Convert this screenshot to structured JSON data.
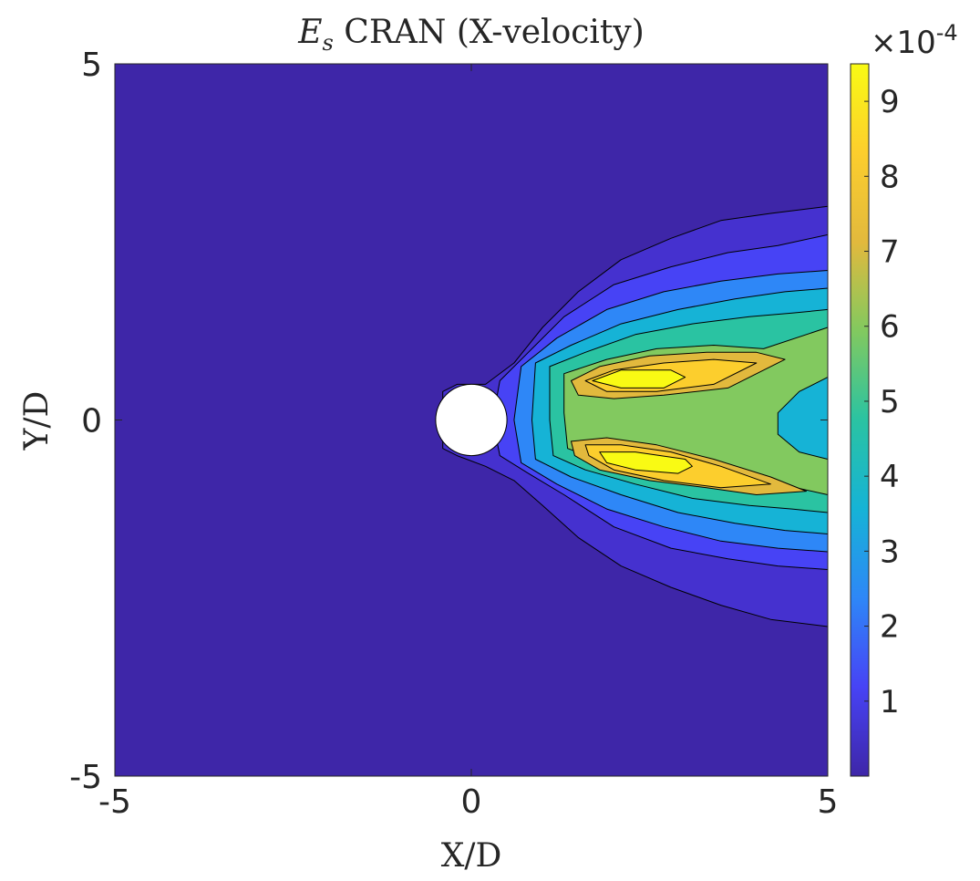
{
  "chart_data": {
    "type": "contour",
    "title": {
      "symbol": "E",
      "subscript": "s",
      "rest": " CRAN (X-velocity)"
    },
    "xlabel": "X/D",
    "ylabel": "Y/D",
    "xlim": [
      -5,
      5
    ],
    "ylim": [
      -5,
      5
    ],
    "x_ticks": [
      {
        "value": -5,
        "label": "-5"
      },
      {
        "value": 0,
        "label": "0"
      },
      {
        "value": 5,
        "label": "5"
      }
    ],
    "y_ticks": [
      {
        "value": -5,
        "label": "-5"
      },
      {
        "value": 0,
        "label": "0"
      },
      {
        "value": 5,
        "label": "5"
      }
    ],
    "colorbar": {
      "min": 0.0,
      "max": 9.5,
      "multiplier_label": "×10",
      "exponent": "-4",
      "ticks": [
        {
          "value": 1,
          "label": "1"
        },
        {
          "value": 2,
          "label": "2"
        },
        {
          "value": 3,
          "label": "3"
        },
        {
          "value": 4,
          "label": "4"
        },
        {
          "value": 5,
          "label": "5"
        },
        {
          "value": 6,
          "label": "6"
        },
        {
          "value": 7,
          "label": "7"
        },
        {
          "value": 8,
          "label": "8"
        },
        {
          "value": 9,
          "label": "9"
        }
      ],
      "colormap": [
        "#3e26a8",
        "#4743f5",
        "#2e87f7",
        "#16b3d6",
        "#2ac3a2",
        "#82c95f",
        "#e2b93d",
        "#fcce2d",
        "#f9fa14"
      ]
    },
    "body": {
      "shape": "circle",
      "center": [
        0,
        0
      ],
      "diameter": 1,
      "color": "#ffffff"
    },
    "background_level_color": "#3e26a8",
    "levels": [
      {
        "value": 0.8,
        "color": "#4531cf",
        "points": [
          [
            -0.4,
            0.4
          ],
          [
            -0.2,
            0.5
          ],
          [
            0.2,
            0.5
          ],
          [
            0.6,
            0.8
          ],
          [
            1.0,
            1.3
          ],
          [
            1.5,
            1.8
          ],
          [
            2.1,
            2.25
          ],
          [
            2.8,
            2.55
          ],
          [
            3.5,
            2.8
          ],
          [
            4.2,
            2.9
          ],
          [
            5,
            3.0
          ],
          [
            5,
            -2.9
          ],
          [
            4.2,
            -2.8
          ],
          [
            3.5,
            -2.6
          ],
          [
            2.8,
            -2.35
          ],
          [
            2.1,
            -2.05
          ],
          [
            1.5,
            -1.65
          ],
          [
            1.0,
            -1.2
          ],
          [
            0.6,
            -0.85
          ],
          [
            0.2,
            -0.65
          ],
          [
            -0.2,
            -0.5
          ],
          [
            -0.4,
            -0.4
          ]
        ]
      },
      {
        "value": 1.5,
        "color": "#4743f5",
        "points": [
          [
            0.4,
            0.55
          ],
          [
            0.8,
            0.95
          ],
          [
            1.3,
            1.45
          ],
          [
            2.0,
            1.9
          ],
          [
            2.8,
            2.15
          ],
          [
            3.6,
            2.35
          ],
          [
            4.3,
            2.45
          ],
          [
            5,
            2.6
          ],
          [
            5,
            -2.1
          ],
          [
            4.3,
            -2.05
          ],
          [
            3.6,
            -1.95
          ],
          [
            2.8,
            -1.8
          ],
          [
            2.0,
            -1.5
          ],
          [
            1.3,
            -1.05
          ],
          [
            0.8,
            -0.75
          ],
          [
            0.4,
            -0.5
          ],
          [
            0.3,
            0
          ]
        ]
      },
      {
        "value": 2.5,
        "color": "#2e87f7",
        "points": [
          [
            0.7,
            0.75
          ],
          [
            1.2,
            1.15
          ],
          [
            1.9,
            1.55
          ],
          [
            2.7,
            1.8
          ],
          [
            3.5,
            1.95
          ],
          [
            4.3,
            2.05
          ],
          [
            5,
            2.1
          ],
          [
            5,
            -1.85
          ],
          [
            4.3,
            -1.8
          ],
          [
            3.5,
            -1.7
          ],
          [
            2.7,
            -1.5
          ],
          [
            1.9,
            -1.25
          ],
          [
            1.2,
            -0.9
          ],
          [
            0.7,
            -0.6
          ],
          [
            0.6,
            0
          ]
        ]
      },
      {
        "value": 3.5,
        "color": "#16b3d6",
        "points": [
          [
            0.9,
            0.8
          ],
          [
            1.4,
            1.05
          ],
          [
            2.1,
            1.35
          ],
          [
            2.9,
            1.55
          ],
          [
            3.7,
            1.7
          ],
          [
            4.4,
            1.8
          ],
          [
            5,
            1.85
          ],
          [
            5,
            -1.6
          ],
          [
            4.4,
            -1.55
          ],
          [
            3.7,
            -1.45
          ],
          [
            2.9,
            -1.3
          ],
          [
            2.1,
            -1.05
          ],
          [
            1.4,
            -0.8
          ],
          [
            0.9,
            -0.55
          ],
          [
            0.85,
            0
          ]
        ]
      },
      {
        "value": 4.5,
        "color": "#2ac3a2",
        "points": [
          [
            1.1,
            0.75
          ],
          [
            1.6,
            0.95
          ],
          [
            2.3,
            1.2
          ],
          [
            3.1,
            1.35
          ],
          [
            3.9,
            1.45
          ],
          [
            4.5,
            1.5
          ],
          [
            5,
            1.55
          ],
          [
            5,
            -1.3
          ],
          [
            4.5,
            -1.25
          ],
          [
            3.9,
            -1.2
          ],
          [
            3.1,
            -1.1
          ],
          [
            2.3,
            -0.9
          ],
          [
            1.6,
            -0.7
          ],
          [
            1.15,
            -0.5
          ],
          [
            1.1,
            0
          ]
        ]
      },
      {
        "value": 5.5,
        "color": "#82c95f",
        "points": [
          [
            1.3,
            0.65
          ],
          [
            1.9,
            0.85
          ],
          [
            2.6,
            1.0
          ],
          [
            3.4,
            1.05
          ],
          [
            4.1,
            1.0
          ],
          [
            5,
            1.3
          ],
          [
            5,
            -1.05
          ],
          [
            4.1,
            -0.85
          ],
          [
            3.4,
            -0.85
          ],
          [
            2.6,
            -0.75
          ],
          [
            1.9,
            -0.6
          ],
          [
            1.35,
            -0.4
          ],
          [
            1.3,
            0.1
          ]
        ]
      },
      {
        "value": 6.5,
        "color": "#e2b93d",
        "points": [
          [
            1.4,
            0.55
          ],
          [
            1.8,
            0.75
          ],
          [
            2.5,
            0.9
          ],
          [
            3.3,
            0.95
          ],
          [
            4.0,
            0.95
          ],
          [
            4.4,
            0.85
          ],
          [
            3.6,
            0.45
          ],
          [
            2.7,
            0.35
          ],
          [
            2.0,
            0.3
          ],
          [
            1.5,
            0.35
          ]
        ]
      },
      {
        "value": 7.5,
        "color": "#fcce2d",
        "points": [
          [
            1.6,
            0.55
          ],
          [
            2.0,
            0.7
          ],
          [
            2.7,
            0.8
          ],
          [
            3.4,
            0.85
          ],
          [
            4.0,
            0.8
          ],
          [
            3.4,
            0.5
          ],
          [
            2.6,
            0.4
          ],
          [
            1.9,
            0.4
          ]
        ]
      },
      {
        "value": 9.0,
        "color": "#f9fa14",
        "points": [
          [
            1.7,
            0.55
          ],
          [
            2.1,
            0.7
          ],
          [
            2.8,
            0.7
          ],
          [
            3.0,
            0.6
          ],
          [
            2.7,
            0.45
          ],
          [
            2.1,
            0.45
          ]
        ]
      },
      {
        "value": 6.5,
        "color": "#e2b93d",
        "points": [
          [
            1.4,
            -0.3
          ],
          [
            1.9,
            -0.25
          ],
          [
            2.6,
            -0.35
          ],
          [
            3.4,
            -0.55
          ],
          [
            4.2,
            -0.8
          ],
          [
            4.7,
            -1.0
          ],
          [
            4.0,
            -1.05
          ],
          [
            3.3,
            -0.95
          ],
          [
            2.5,
            -0.85
          ],
          [
            1.8,
            -0.7
          ],
          [
            1.45,
            -0.5
          ]
        ]
      },
      {
        "value": 7.5,
        "color": "#fcce2d",
        "points": [
          [
            1.6,
            -0.35
          ],
          [
            2.1,
            -0.35
          ],
          [
            2.8,
            -0.45
          ],
          [
            3.5,
            -0.65
          ],
          [
            4.2,
            -0.9
          ],
          [
            3.5,
            -0.95
          ],
          [
            2.7,
            -0.85
          ],
          [
            2.0,
            -0.7
          ],
          [
            1.65,
            -0.5
          ]
        ]
      },
      {
        "value": 9.0,
        "color": "#f9fa14",
        "points": [
          [
            1.8,
            -0.45
          ],
          [
            2.3,
            -0.45
          ],
          [
            3.0,
            -0.55
          ],
          [
            3.1,
            -0.65
          ],
          [
            2.9,
            -0.75
          ],
          [
            2.3,
            -0.7
          ],
          [
            1.9,
            -0.6
          ]
        ]
      },
      {
        "value": 4.5,
        "color": "#16b3d6",
        "points": [
          [
            5,
            0.6
          ],
          [
            4.6,
            0.4
          ],
          [
            4.3,
            0.1
          ],
          [
            4.3,
            -0.2
          ],
          [
            4.6,
            -0.45
          ],
          [
            5,
            -0.55
          ]
        ]
      }
    ]
  }
}
